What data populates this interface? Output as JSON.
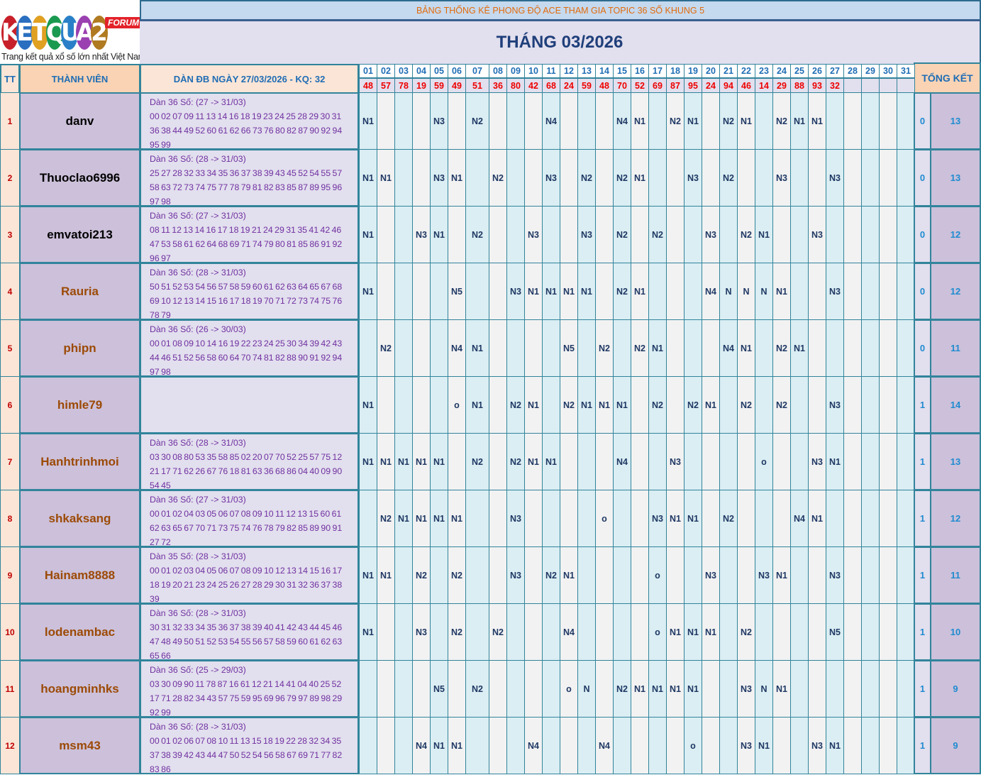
{
  "logo": {
    "text": "KETQUA2",
    "badge": "FORUM",
    "tagline": "Trang kết quả xổ số lớn nhất Việt Nam"
  },
  "title": "BẢNG THỐNG KÊ PHONG ĐỘ ACE THAM GIA TOPIC 36 SỐ KHUNG 5",
  "month": "THÁNG 03/2026",
  "headers": {
    "tt": "TT",
    "member": "THÀNH VIÊN",
    "dan": "DÀN ĐB NGÀY 27/03/2026 - KQ: 32",
    "summary": "TỔNG KẾT"
  },
  "days": [
    "01",
    "02",
    "03",
    "04",
    "05",
    "06",
    "07",
    "08",
    "09",
    "10",
    "11",
    "12",
    "13",
    "14",
    "15",
    "16",
    "17",
    "18",
    "19",
    "20",
    "21",
    "22",
    "23",
    "24",
    "25",
    "26",
    "27",
    "28",
    "29",
    "30",
    "31"
  ],
  "results": [
    "48",
    "57",
    "78",
    "19",
    "59",
    "49",
    "51",
    "36",
    "80",
    "42",
    "68",
    "24",
    "59",
    "48",
    "70",
    "52",
    "69",
    "87",
    "95",
    "24",
    "94",
    "46",
    "14",
    "29",
    "88",
    "93",
    "32",
    "",
    "",
    "",
    ""
  ],
  "colors": {
    "name_dark": "#000000",
    "name_brown": "#9c4a06",
    "result_red": "#e00000",
    "accent_blue": "#1f6db5"
  },
  "rows": [
    {
      "tt": "1",
      "member": "danv",
      "name_color": "dark",
      "dan_title": "Dàn 36 Số: (27 -> 31/03)",
      "dan_numbers": "00 02 07 09 11 13 14 16 18 19 23 24 25 28 29 30 31 36 38 44 49 52 60 61 62 66 73 76 80 82 87 90 92 94 95 99",
      "marks": {
        "01": "N1",
        "05": "N3",
        "07": "N2",
        "11": "N4",
        "15": "N4",
        "16": "N1",
        "18": "N2",
        "19": "N1",
        "21": "N2",
        "22": "N1",
        "24": "N2",
        "25": "N1",
        "26": "N1"
      },
      "miss": "0",
      "total": "13"
    },
    {
      "tt": "2",
      "member": "Thuoclao6996",
      "name_color": "dark",
      "dan_title": "Dàn 36 Số: (28 -> 31/03)",
      "dan_numbers": "25 27 28 32 33 34 35 36 37 38 39 43 45 52 54 55 57 58 63 72 73 74 75 77 78 79 81 82 83 85 87 89 95 96 97 98",
      "marks": {
        "01": "N1",
        "02": "N1",
        "05": "N3",
        "06": "N1",
        "08": "N2",
        "11": "N3",
        "13": "N2",
        "15": "N2",
        "16": "N1",
        "19": "N3",
        "21": "N2",
        "24": "N3",
        "27": "N3"
      },
      "miss": "0",
      "total": "13"
    },
    {
      "tt": "3",
      "member": "emvatoi213",
      "name_color": "dark",
      "dan_title": "Dàn 36 Số: (27 -> 31/03)",
      "dan_numbers": "08 11 12 13 14 16 17 18 19 21 24 29 31 35 41 42 46 47 53 58 61 62 64 68 69 71 74 79 80 81 85 86 91 92 96 97",
      "marks": {
        "01": "N1",
        "04": "N3",
        "05": "N1",
        "07": "N2",
        "10": "N3",
        "13": "N3",
        "15": "N2",
        "17": "N2",
        "20": "N3",
        "22": "N2",
        "23": "N1",
        "26": "N3"
      },
      "miss": "0",
      "total": "12"
    },
    {
      "tt": "4",
      "member": "Rauria",
      "name_color": "brown",
      "dan_title": "Dàn 36 Số: (28 -> 31/03)",
      "dan_numbers": "50 51 52 53 54 56 57 58 59 60 61 62 63 64 65 67 68 69 10 12 13 14 15 16 17 18 19 70 71 72 73 74 75 76 78 79",
      "marks": {
        "01": "N1",
        "06": "N5",
        "09": "N3",
        "10": "N1",
        "11": "N1",
        "12": "N1",
        "13": "N1",
        "15": "N2",
        "16": "N1",
        "20": "N4",
        "21": "N",
        "22": "N",
        "23": "N",
        "24": "N1",
        "27": "N3"
      },
      "miss": "0",
      "total": "12"
    },
    {
      "tt": "5",
      "member": "phipn",
      "name_color": "brown",
      "dan_title": "Dàn 36 Số: (26 -> 30/03)",
      "dan_numbers": "00 01 08 09 10 14 16 19 22 23 24 25 30 34 39 42 43 44 46 51 52 56 58 60 64 70 74 81 82 88 90 91 92 94 97 98",
      "marks": {
        "02": "N2",
        "06": "N4",
        "07": "N1",
        "12": "N5",
        "14": "N2",
        "16": "N2",
        "17": "N1",
        "21": "N4",
        "22": "N1",
        "24": "N2",
        "25": "N1"
      },
      "miss": "0",
      "total": "11"
    },
    {
      "tt": "6",
      "member": "himle79",
      "name_color": "brown",
      "dan_title": "",
      "dan_numbers": "",
      "marks": {
        "01": "N1",
        "06": "o",
        "07": "N1",
        "09": "N2",
        "10": "N1",
        "12": "N2",
        "13": "N1",
        "14": "N1",
        "15": "N1",
        "17": "N2",
        "19": "N2",
        "20": "N1",
        "22": "N2",
        "24": "N2",
        "27": "N3"
      },
      "miss": "1",
      "total": "14"
    },
    {
      "tt": "7",
      "member": "Hanhtrinhmoi",
      "name_color": "brown",
      "dan_title": "Dàn 36 Số: (28 -> 31/03)",
      "dan_numbers": "03 30 08 80 53 35 58 85 02 20 07 70 52 25 57 75 12 21 17 71 62 26 67 76 18 81 63 36 68 86 04 40 09 90 54 45",
      "marks": {
        "01": "N1",
        "02": "N1",
        "03": "N1",
        "04": "N1",
        "05": "N1",
        "07": "N2",
        "09": "N2",
        "10": "N1",
        "11": "N1",
        "15": "N4",
        "18": "N3",
        "23": "o",
        "26": "N3",
        "27": "N1"
      },
      "miss": "1",
      "total": "13"
    },
    {
      "tt": "8",
      "member": "shkaksang",
      "name_color": "brown",
      "dan_title": "Dàn 36 Số: (27 -> 31/03)",
      "dan_numbers": "00 01 02 04 03 05 06 07 08 09 10 11 12 13 15 60 61 62 63 65 67 70 71 73 75 74 76 78 79 82 85 89 90 91 27 72",
      "marks": {
        "02": "N2",
        "03": "N1",
        "04": "N1",
        "05": "N1",
        "06": "N1",
        "09": "N3",
        "14": "o",
        "17": "N3",
        "18": "N1",
        "19": "N1",
        "21": "N2",
        "25": "N4",
        "26": "N1"
      },
      "miss": "1",
      "total": "12"
    },
    {
      "tt": "9",
      "member": "Hainam8888",
      "name_color": "brown",
      "dan_title": "Dàn 35 Số: (28 -> 31/03)",
      "dan_numbers": "00 01 02 03 04 05 06 07 08 09 10 12 13 14 15 16 17 18 19 20 21 23 24 25 26 27 28 29 30 31 32 36 37 38 39",
      "marks": {
        "01": "N1",
        "02": "N1",
        "04": "N2",
        "06": "N2",
        "09": "N3",
        "11": "N2",
        "12": "N1",
        "17": "o",
        "20": "N3",
        "23": "N3",
        "24": "N1",
        "27": "N3"
      },
      "miss": "1",
      "total": "11"
    },
    {
      "tt": "10",
      "member": "lodenambac",
      "name_color": "brown",
      "dan_title": "Dàn 36 Số: (28 -> 31/03)",
      "dan_numbers": "30 31 32 33 34 35 36 37 38 39 40 41 42 43 44 45 46 47 48 49 50 51 52 53 54 55 56 57 58 59 60 61 62 63 65 66",
      "marks": {
        "01": "N1",
        "04": "N3",
        "06": "N2",
        "08": "N2",
        "12": "N4",
        "17": "o",
        "18": "N1",
        "19": "N1",
        "20": "N1",
        "22": "N2",
        "27": "N5"
      },
      "miss": "1",
      "total": "10"
    },
    {
      "tt": "11",
      "member": "hoangminhks",
      "name_color": "brown",
      "dan_title": "Dàn 36 Số: (25 -> 29/03)",
      "dan_numbers": "03 30 09 90 11 78 87 16 61 12 21 14 41 04 40 25 52 17 71 28 82 34 43 57 75 59 95 69 96 79 97 89 98 29 92 99",
      "marks": {
        "05": "N5",
        "07": "N2",
        "12": "o",
        "13": "N",
        "15": "N2",
        "16": "N1",
        "17": "N1",
        "18": "N1",
        "19": "N1",
        "22": "N3",
        "23": "N",
        "24": "N1"
      },
      "miss": "1",
      "total": "9"
    },
    {
      "tt": "12",
      "member": "msm43",
      "name_color": "brown",
      "dan_title": "Dàn 36 Số: (28 -> 31/03)",
      "dan_numbers": "00 01 02 06 07 08 10 11 13 15 18 19 22 28 32 34 35 37 38 39 42 43 44 47 50 52 54 56 58 67 69 71 77 82 83 86",
      "marks": {
        "04": "N4",
        "05": "N1",
        "06": "N1",
        "10": "N4",
        "14": "N4",
        "19": "o",
        "22": "N3",
        "23": "N1",
        "26": "N3",
        "27": "N1"
      },
      "miss": "1",
      "total": "9"
    }
  ]
}
